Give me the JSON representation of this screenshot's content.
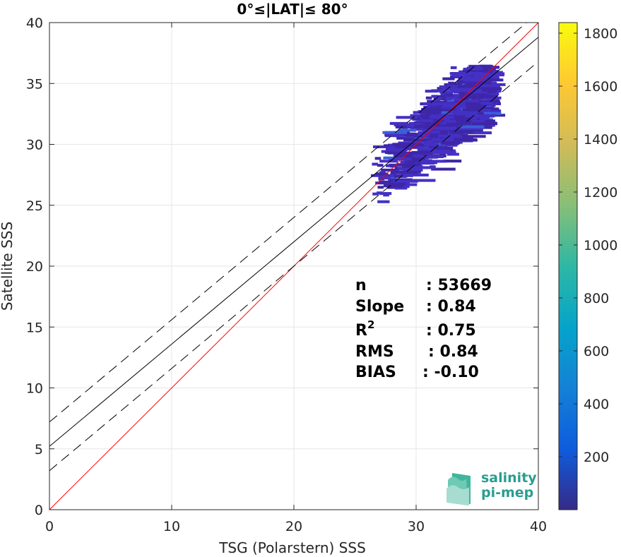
{
  "chart_data": {
    "type": "heatmap",
    "title": "0°≤|LAT|≤ 80°",
    "xlabel": "TSG (Polarstern) SSS",
    "ylabel": "Satellite SSS",
    "xlim": [
      0,
      40
    ],
    "ylim": [
      0,
      40
    ],
    "xticks": [
      "0",
      "10",
      "20",
      "30",
      "40"
    ],
    "yticks": [
      "0",
      "5",
      "10",
      "15",
      "20",
      "25",
      "30",
      "35",
      "40"
    ],
    "grid": true,
    "lines": [
      {
        "name": "1:1",
        "color": "#ff0000",
        "style": "solid",
        "intercept": 0,
        "slope": 1
      },
      {
        "name": "fit",
        "color": "#000000",
        "style": "solid",
        "intercept": 5.2,
        "slope": 0.84
      },
      {
        "name": "fit+",
        "color": "#000000",
        "style": "dashed",
        "intercept": 7.2,
        "slope": 0.84
      },
      {
        "name": "fit-",
        "color": "#000000",
        "style": "dashed",
        "intercept": 3.2,
        "slope": 0.84
      }
    ],
    "density_region": {
      "x_range": [
        25.5,
        35.5
      ],
      "y_range": [
        25,
        36.5
      ],
      "dominant_value": "< 200"
    },
    "colorbar": {
      "ticks": [
        "200",
        "400",
        "600",
        "800",
        "1000",
        "1200",
        "1400",
        "1600",
        "1800"
      ],
      "range": [
        0,
        1840
      ],
      "colormap": "parula"
    },
    "stats": [
      {
        "label": "n",
        "value": ": 53669"
      },
      {
        "label": "Slope",
        "value": ": 0.84"
      },
      {
        "label": "R",
        "sup": "2",
        "value": ": 0.75"
      },
      {
        "label": "RMS",
        "value": ": 0.84"
      },
      {
        "label": "BIAS",
        "value": ": -0.10"
      }
    ]
  },
  "logo": {
    "line1": "salinity",
    "line2": "pi-mep"
  }
}
